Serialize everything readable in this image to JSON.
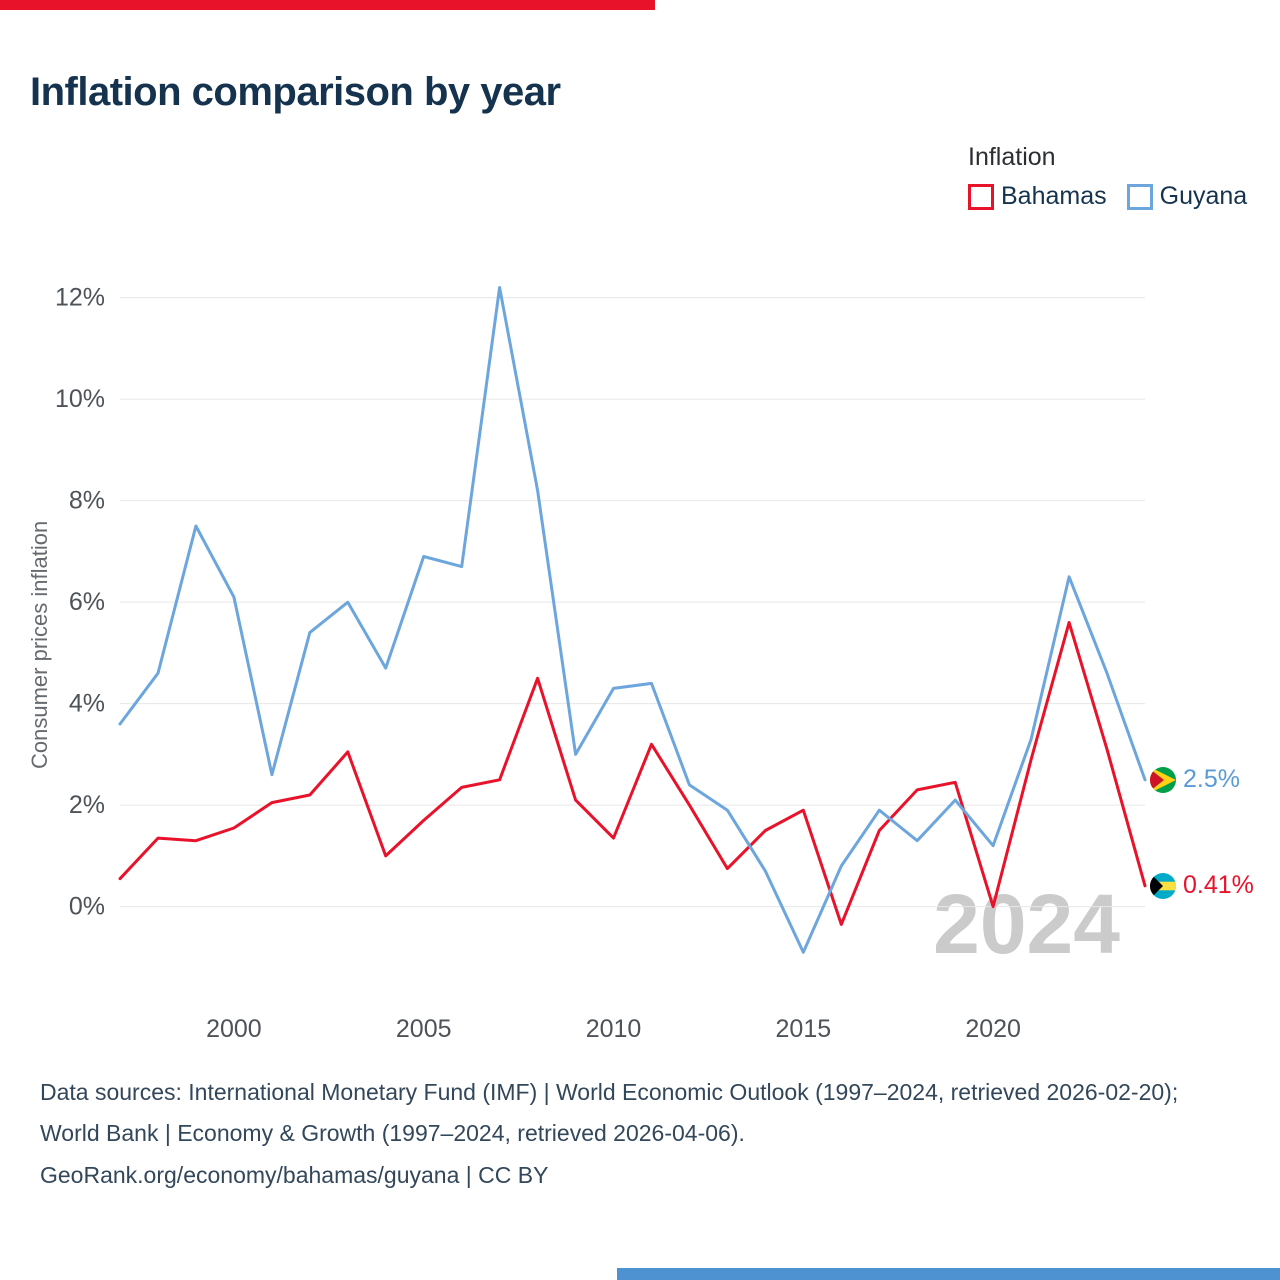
{
  "title": "Inflation comparison by year",
  "legend": {
    "title": "Inflation",
    "items": [
      {
        "label": "Bahamas",
        "color": "#e8132b"
      },
      {
        "label": "Guyana",
        "color": "#6ca6dd"
      }
    ]
  },
  "watermark": "2024",
  "end_labels": [
    {
      "country": "Guyana",
      "value": 2.5,
      "value_label": "2.5%",
      "color": "#5b9bd5"
    },
    {
      "country": "Bahamas",
      "value": 0.41,
      "value_label": "0.41%",
      "color": "#e8132b"
    }
  ],
  "footer": {
    "sources": "Data sources: International Monetary Fund (IMF) | World Economic Outlook (1997–2024, retrieved 2026-02-20); World Bank | Economy & Growth (1997–2024, retrieved 2026-04-06).",
    "attribution": "GeoRank.org/economy/bahamas/guyana | CC BY"
  },
  "accent_colors": {
    "top_bar": "#e8132b",
    "bottom_bar": "#4f92d1"
  },
  "chart_data": {
    "type": "line",
    "title": "Inflation comparison by year",
    "ylabel": "Consumer prices inflation",
    "xlabel": "",
    "grid": true,
    "legend_position": "top-right",
    "ylim": [
      -1.15,
      12.25
    ],
    "yticks": [
      0,
      2,
      4,
      6,
      8,
      10,
      12
    ],
    "ytick_labels": [
      "0%",
      "2%",
      "4%",
      "6%",
      "8%",
      "10%",
      "12%"
    ],
    "xticks": [
      2000,
      2005,
      2010,
      2015,
      2020
    ],
    "x": [
      1997,
      1998,
      1999,
      2000,
      2001,
      2002,
      2003,
      2004,
      2005,
      2006,
      2007,
      2008,
      2009,
      2010,
      2011,
      2012,
      2013,
      2014,
      2015,
      2016,
      2017,
      2018,
      2019,
      2020,
      2021,
      2022,
      2023,
      2024
    ],
    "series": [
      {
        "name": "Bahamas",
        "color": "#e8132b",
        "values": [
          0.55,
          1.35,
          1.3,
          1.55,
          2.05,
          2.2,
          3.05,
          1.0,
          1.7,
          2.35,
          2.5,
          4.5,
          2.1,
          1.35,
          3.2,
          2.0,
          0.75,
          1.5,
          1.9,
          -0.35,
          1.5,
          2.3,
          2.45,
          0.0,
          2.9,
          5.6,
          3.1,
          0.41
        ]
      },
      {
        "name": "Guyana",
        "color": "#6ca6dd",
        "values": [
          3.6,
          4.6,
          7.5,
          6.1,
          2.6,
          5.4,
          6.0,
          4.7,
          6.9,
          6.7,
          12.2,
          8.2,
          3.0,
          4.3,
          4.4,
          2.4,
          1.9,
          0.7,
          -0.9,
          0.8,
          1.9,
          1.3,
          2.1,
          1.2,
          3.3,
          6.5,
          4.6,
          2.5
        ]
      }
    ]
  }
}
